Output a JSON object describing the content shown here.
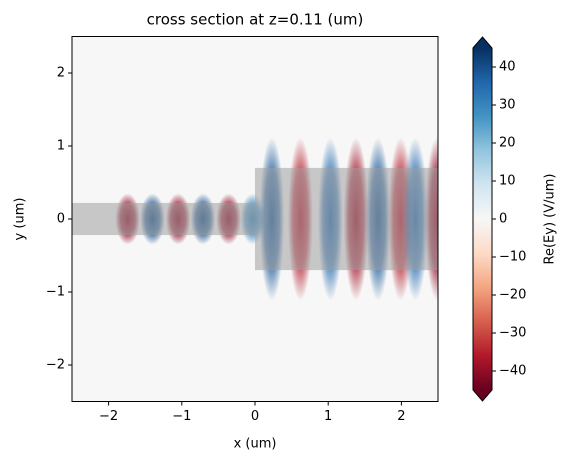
{
  "chart_data": {
    "type": "field",
    "title": "cross section at z=0.11 (um)",
    "x_label": "x (um)",
    "y_label": "y (um)",
    "colorbar_label": "Re(Ey) (V/um)",
    "xlim": [
      -2.5,
      2.5
    ],
    "ylim": [
      -2.5,
      2.5
    ],
    "xticks": [
      {
        "value": -2,
        "label": "−2"
      },
      {
        "value": -1,
        "label": "−1"
      },
      0,
      1,
      2
    ],
    "yticks": [
      {
        "value": -2,
        "label": "−2"
      },
      {
        "value": -1,
        "label": "−1"
      },
      0,
      1,
      2
    ],
    "clim": [
      -45,
      45
    ],
    "cticks": [
      {
        "value": -40,
        "label": "−40"
      },
      {
        "value": -30,
        "label": "−30"
      },
      {
        "value": -20,
        "label": "−20"
      },
      {
        "value": -10,
        "label": "−10"
      },
      0,
      10,
      20,
      30,
      40
    ],
    "colormap": [
      "#67001f",
      "#b2182b",
      "#d6604d",
      "#f4a582",
      "#fddbc7",
      "#f7f7f7",
      "#d1e5f0",
      "#92c5de",
      "#4393c3",
      "#2166ac",
      "#053061"
    ],
    "structure_color": "#a0a0a0",
    "structures": [
      {
        "xlim": [
          -2.5,
          0
        ],
        "ylim": [
          -0.22,
          0.22
        ]
      },
      {
        "xlim": [
          0,
          2.5
        ],
        "ylim": [
          -0.7,
          0.7
        ]
      }
    ],
    "x": [
      -1.74,
      -1.4,
      -1.05,
      -0.71,
      -0.36,
      -0.03,
      0.23,
      0.62,
      1.03,
      1.38,
      1.68,
      1.99,
      2.19,
      2.49
    ],
    "values": [
      -40,
      40,
      -40,
      40,
      -40,
      30,
      38,
      -35,
      35,
      -38,
      38,
      -35,
      35,
      -40
    ]
  }
}
